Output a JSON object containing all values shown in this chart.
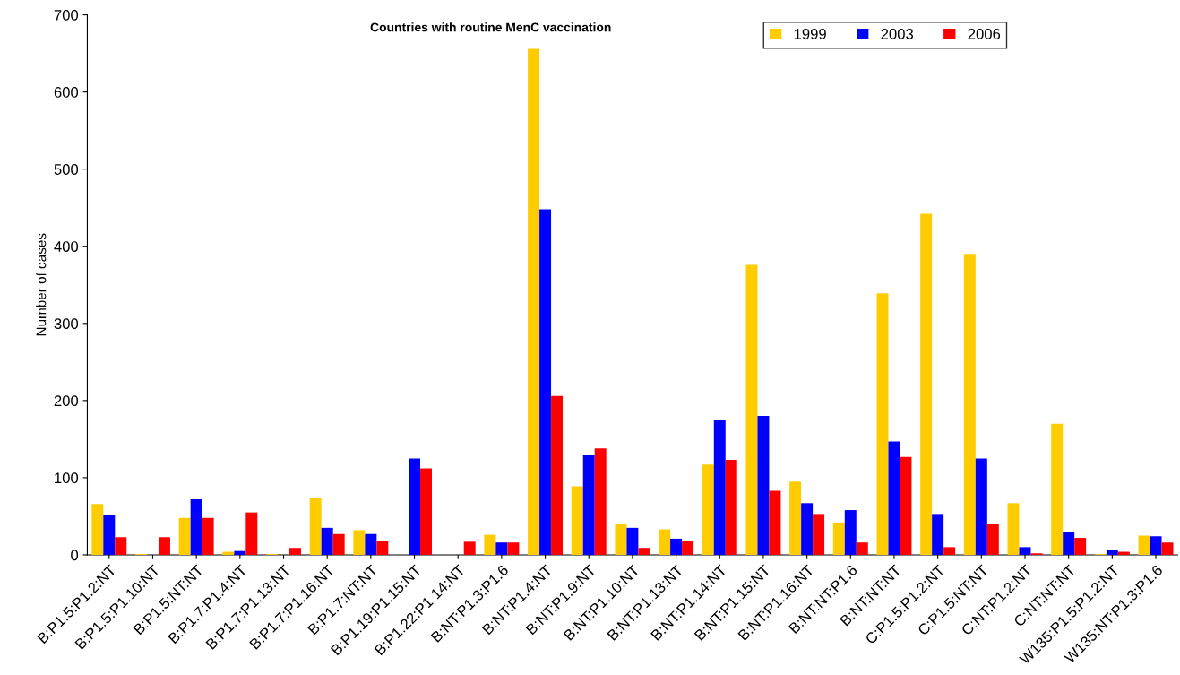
{
  "chart_data": {
    "type": "bar",
    "title": "Countries with routine MenC vaccination",
    "ylabel": "Number of cases",
    "categories": [
      "B:P1.5:P1.2:NT",
      "B:P1.5:P1.10:NT",
      "B:P1.5:NT:NT",
      "B:P1.7:P1.4:NT",
      "B:P1.7:P1.13:NT",
      "B:P1.7:P1.16:NT",
      "B:P1.7:NT:NT",
      "B:P1.19:P1.15:NT",
      "B:P1.22:P1.14:NT",
      "B:NT:P1.3:P1.6",
      "B:NT:P1.4:NT",
      "B:NT:P1.9:NT",
      "B:NT:P1.10:NT",
      "B:NT:P1.13:NT",
      "B:NT:P1.14:NT",
      "B:NT:P1.15:NT",
      "B:NT:P1.16:NT",
      "B:NT:NT:P1.6",
      "B:NT:NT:NT",
      "C:P1.5:P1.2:NT",
      "C:P1.5:NT:NT",
      "C:NT:P1.2:NT",
      "C:NT:NT:NT",
      "W135:P1.5:P1.2:NT",
      "W135:NT:P1.3:P1.6"
    ],
    "series": [
      {
        "name": "1999",
        "color": "#ffcc00",
        "values": [
          66,
          1,
          48,
          4,
          1,
          74,
          32,
          0,
          0,
          26,
          656,
          89,
          40,
          33,
          117,
          376,
          95,
          42,
          339,
          442,
          390,
          67,
          170,
          1,
          25
        ]
      },
      {
        "name": "2003",
        "color": "#0000ff",
        "values": [
          52,
          0,
          72,
          5,
          0,
          35,
          27,
          125,
          0,
          16,
          448,
          129,
          35,
          21,
          175,
          180,
          67,
          58,
          147,
          53,
          125,
          10,
          29,
          6,
          24
        ]
      },
      {
        "name": "2006",
        "color": "#ff0000",
        "values": [
          23,
          23,
          48,
          55,
          9,
          27,
          18,
          112,
          17,
          16,
          206,
          138,
          9,
          18,
          123,
          83,
          53,
          16,
          127,
          10,
          40,
          2,
          22,
          4,
          16
        ]
      }
    ],
    "ylim": [
      0,
      700
    ],
    "yticks": [
      0,
      100,
      200,
      300,
      400,
      500,
      600,
      700
    ],
    "grid": false,
    "legend": "top right"
  }
}
